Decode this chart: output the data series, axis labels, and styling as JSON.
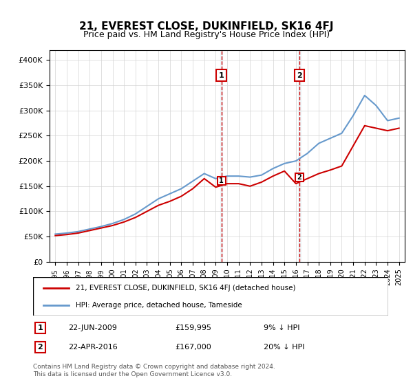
{
  "title": "21, EVEREST CLOSE, DUKINFIELD, SK16 4FJ",
  "subtitle": "Price paid vs. HM Land Registry's House Price Index (HPI)",
  "legend_line1": "21, EVEREST CLOSE, DUKINFIELD, SK16 4FJ (detached house)",
  "legend_line2": "HPI: Average price, detached house, Tameside",
  "footnote": "Contains HM Land Registry data © Crown copyright and database right 2024.\nThis data is licensed under the Open Government Licence v3.0.",
  "marker1_label": "1",
  "marker1_date": "22-JUN-2009",
  "marker1_price": "£159,995",
  "marker1_hpi": "9% ↓ HPI",
  "marker2_label": "2",
  "marker2_date": "22-APR-2016",
  "marker2_price": "£167,000",
  "marker2_hpi": "20% ↓ HPI",
  "price_line_color": "#cc0000",
  "hpi_line_color": "#6699cc",
  "marker_vline_color": "#cc0000",
  "marker_fill_color": "#ddddff",
  "ylim": [
    0,
    420000
  ],
  "yticks": [
    0,
    50000,
    100000,
    150000,
    200000,
    250000,
    300000,
    350000,
    400000
  ],
  "ytick_labels": [
    "£0",
    "£50K",
    "£100K",
    "£150K",
    "£200K",
    "£250K",
    "£300K",
    "£350K",
    "£400K"
  ],
  "hpi_years": [
    1995,
    1996,
    1997,
    1998,
    1999,
    2000,
    2001,
    2002,
    2003,
    2004,
    2005,
    2006,
    2007,
    2008,
    2009,
    2010,
    2011,
    2012,
    2013,
    2014,
    2015,
    2016,
    2017,
    2018,
    2019,
    2020,
    2021,
    2022,
    2023,
    2024,
    2025
  ],
  "hpi_values": [
    55000,
    57000,
    60000,
    65000,
    70000,
    76000,
    84000,
    95000,
    110000,
    125000,
    135000,
    145000,
    160000,
    175000,
    165000,
    170000,
    170000,
    168000,
    172000,
    185000,
    195000,
    200000,
    215000,
    235000,
    245000,
    255000,
    290000,
    330000,
    310000,
    280000,
    285000
  ],
  "price_years": [
    1995,
    1996,
    1997,
    1998,
    1999,
    2000,
    2001,
    2002,
    2003,
    2004,
    2005,
    2006,
    2007,
    2008,
    2009,
    2010,
    2011,
    2012,
    2013,
    2014,
    2015,
    2016,
    2017,
    2018,
    2019,
    2020,
    2021,
    2022,
    2023,
    2024,
    2025
  ],
  "price_values": [
    52000,
    54000,
    57000,
    62000,
    67000,
    72000,
    79000,
    88000,
    100000,
    112000,
    120000,
    130000,
    145000,
    165000,
    148000,
    155000,
    155000,
    150000,
    158000,
    170000,
    180000,
    155000,
    165000,
    175000,
    182000,
    190000,
    230000,
    270000,
    265000,
    260000,
    265000
  ],
  "transaction1_year": 2009.5,
  "transaction1_price": 159995,
  "transaction2_year": 2016.3,
  "transaction2_price": 167000,
  "xlim_start": 1994.5,
  "xlim_end": 2025.5
}
